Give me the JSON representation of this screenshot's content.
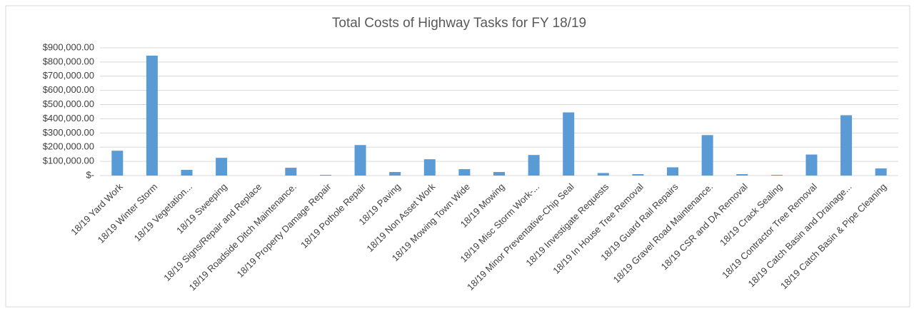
{
  "chart_data": {
    "type": "bar",
    "title": "Total Costs of Highway Tasks for FY 18/19",
    "categories": [
      "18/19 Yard Work",
      "18/19 Winter Storm",
      "18/19 Vegetation...",
      "18/19 Sweeping",
      "18/19 Signs/Repair and Replace",
      "18/19 Roadside Ditch Maintenance.",
      "18/19 Property Damage Repair",
      "18/19 Pothole Repair",
      "18/19 Paving",
      "18/19 Non Asset Work",
      "18/19 Mowing Town Wide",
      "18/19 Mowing",
      "18/19 Misc Storm Work-...",
      "18/19 Minor Preventative-Chip Seal",
      "18/19 Investigate Requests",
      "18/19 In House Tree Removal",
      "18/19 Guard Rail Repairs",
      "18/19 Gravel Road Maintenance.",
      "18/19 CSR and DA Removal",
      "18/19 Crack Sealing",
      "18/19 Contractor Tree Removal",
      "18/19 Catch Basin and Drainage...",
      "18/19 Catch Basin & Pipe Cleaning"
    ],
    "values": [
      175000,
      845000,
      40000,
      125000,
      0,
      55000,
      5000,
      215000,
      25000,
      115000,
      45000,
      25000,
      145000,
      445000,
      18000,
      10000,
      58000,
      285000,
      10000,
      5000,
      148000,
      425000,
      50000
    ],
    "color": "#5b9bd5",
    "ylim": [
      0,
      900000
    ],
    "yticks": [
      {
        "value": 0,
        "label": "$-"
      },
      {
        "value": 100000,
        "label": "$100,000.00"
      },
      {
        "value": 200000,
        "label": "$200,000.00"
      },
      {
        "value": 300000,
        "label": "$300,000.00"
      },
      {
        "value": 400000,
        "label": "$400,000.00"
      },
      {
        "value": 500000,
        "label": "$500,000.00"
      },
      {
        "value": 600000,
        "label": "$600,000.00"
      },
      {
        "value": 700000,
        "label": "$700,000.00"
      },
      {
        "value": 800000,
        "label": "$800,000.00"
      },
      {
        "value": 900000,
        "label": "$900,000.00"
      }
    ],
    "grid": true
  }
}
